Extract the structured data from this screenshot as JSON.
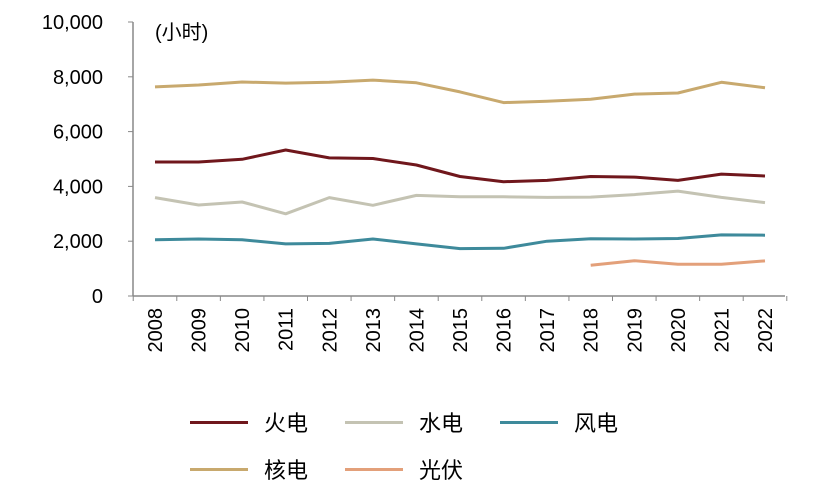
{
  "chart_data": {
    "type": "line",
    "unit_label": "(小时)",
    "x": [
      "2008",
      "2009",
      "2010",
      "2011",
      "2012",
      "2013",
      "2014",
      "2015",
      "2016",
      "2017",
      "2018",
      "2019",
      "2020",
      "2021",
      "2022"
    ],
    "ylim": [
      0,
      10000
    ],
    "yticks": [
      0,
      2000,
      4000,
      6000,
      8000,
      10000
    ],
    "ytick_labels": [
      "0",
      "2,000",
      "4,000",
      "6,000",
      "8,000",
      "10,000"
    ],
    "grid": false,
    "legend_position": "bottom",
    "series": [
      {
        "name": "火电",
        "color": "#70171c",
        "values": [
          4890,
          4890,
          4990,
          5330,
          5040,
          5020,
          4780,
          4360,
          4170,
          4220,
          4360,
          4340,
          4220,
          4450,
          4380
        ]
      },
      {
        "name": "水电",
        "color": "#c4c3b3",
        "values": [
          3590,
          3320,
          3430,
          3000,
          3590,
          3310,
          3670,
          3620,
          3620,
          3600,
          3610,
          3700,
          3830,
          3600,
          3410
        ]
      },
      {
        "name": "风电",
        "color": "#3e8a9b",
        "values": [
          2050,
          2080,
          2050,
          1900,
          1920,
          2080,
          1900,
          1730,
          1740,
          2000,
          2090,
          2080,
          2100,
          2230,
          2220
        ]
      },
      {
        "name": "核电",
        "color": "#c8a96e",
        "values": [
          7630,
          7700,
          7810,
          7770,
          7800,
          7880,
          7780,
          7450,
          7060,
          7110,
          7180,
          7370,
          7410,
          7800,
          7600
        ]
      },
      {
        "name": "光伏",
        "color": "#e3a07a",
        "values": [
          null,
          null,
          null,
          null,
          null,
          null,
          null,
          null,
          null,
          null,
          1120,
          1290,
          1160,
          1160,
          1280
        ]
      }
    ]
  }
}
